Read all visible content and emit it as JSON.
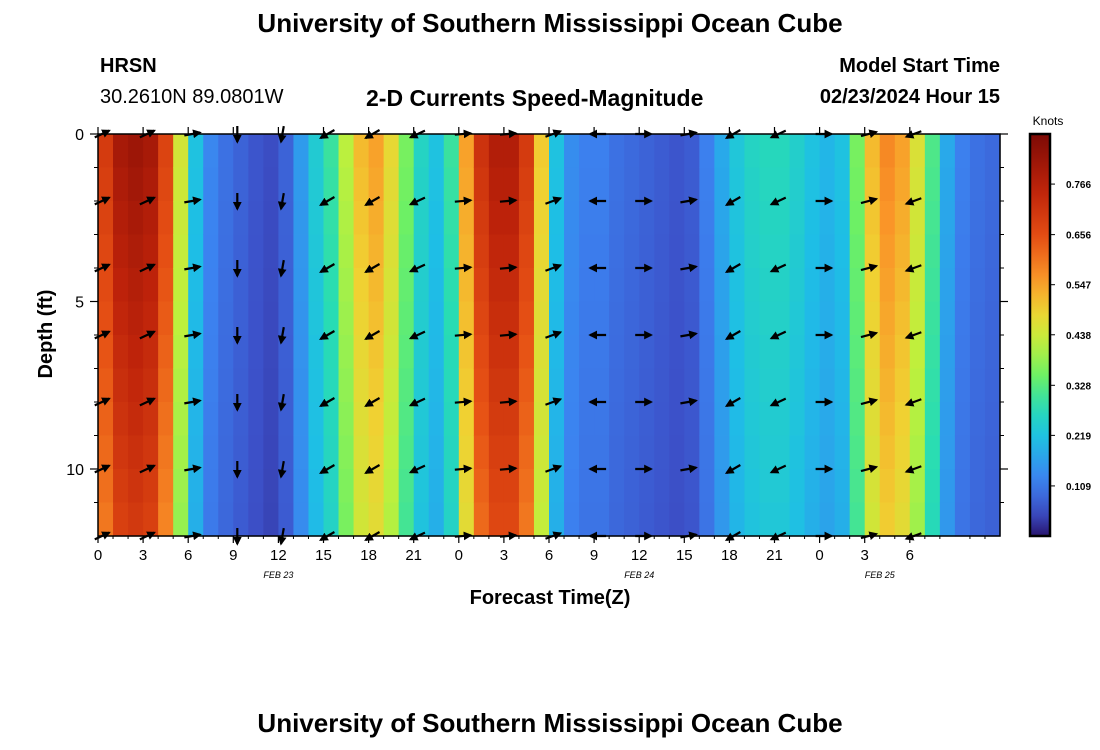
{
  "title": "University of Southern Mississippi Ocean Cube",
  "footer_title": "University of Southern Mississippi Ocean Cube",
  "station": {
    "name": "HRSN",
    "coordinates": "30.2610N  89.0801W"
  },
  "subtitle": "2-D Currents Speed-Magnitude",
  "model_start": {
    "label": "Model Start Time",
    "value": "02/23/2024 Hour 15"
  },
  "chart_data": {
    "type": "heatmap",
    "title": "2-D Currents Speed-Magnitude",
    "xlabel": "Forecast Time(Z)",
    "ylabel": "Depth (ft)",
    "x_hours": [
      0,
      60
    ],
    "ylim": [
      0,
      12
    ],
    "y_reversed": true,
    "x_tick_labels": [
      "0",
      "3",
      "6",
      "9",
      "12",
      "15",
      "18",
      "21",
      "0",
      "3",
      "6",
      "9",
      "12",
      "15",
      "18",
      "21",
      "0",
      "3",
      "6"
    ],
    "y_tick_values": [
      0,
      5,
      10
    ],
    "y_tick_labels": [
      "0",
      "5",
      "10"
    ],
    "date_labels": [
      {
        "text": "FEB 23",
        "hour": 12
      },
      {
        "text": "FEB 24",
        "hour": 36
      },
      {
        "text": "FEB 25",
        "hour": 52
      }
    ],
    "colorbar": {
      "label": "Knots",
      "range": [
        0,
        0.875
      ],
      "ticks": [
        0.109,
        0.219,
        0.328,
        0.438,
        0.547,
        0.656,
        0.766
      ],
      "tick_labels": [
        "0.109",
        "0.219",
        "0.328",
        "0.438",
        "0.547",
        "0.656",
        "0.766"
      ]
    },
    "speed_profile_knots": [
      {
        "hour": 0,
        "speed": 0.7
      },
      {
        "hour": 1,
        "speed": 0.8
      },
      {
        "hour": 2,
        "speed": 0.82
      },
      {
        "hour": 3,
        "speed": 0.8
      },
      {
        "hour": 4,
        "speed": 0.68
      },
      {
        "hour": 5,
        "speed": 0.45
      },
      {
        "hour": 6,
        "speed": 0.22
      },
      {
        "hour": 7,
        "speed": 0.13
      },
      {
        "hour": 8,
        "speed": 0.1
      },
      {
        "hour": 9,
        "speed": 0.08
      },
      {
        "hour": 10,
        "speed": 0.06
      },
      {
        "hour": 11,
        "speed": 0.05
      },
      {
        "hour": 12,
        "speed": 0.08
      },
      {
        "hour": 13,
        "speed": 0.16
      },
      {
        "hour": 14,
        "speed": 0.24
      },
      {
        "hour": 15,
        "speed": 0.3
      },
      {
        "hour": 16,
        "speed": 0.42
      },
      {
        "hour": 17,
        "speed": 0.52
      },
      {
        "hour": 18,
        "speed": 0.55
      },
      {
        "hour": 19,
        "speed": 0.48
      },
      {
        "hour": 20,
        "speed": 0.36
      },
      {
        "hour": 21,
        "speed": 0.26
      },
      {
        "hour": 22,
        "speed": 0.22
      },
      {
        "hour": 23,
        "speed": 0.3
      },
      {
        "hour": 24,
        "speed": 0.55
      },
      {
        "hour": 25,
        "speed": 0.72
      },
      {
        "hour": 26,
        "speed": 0.78
      },
      {
        "hour": 27,
        "speed": 0.78
      },
      {
        "hour": 28,
        "speed": 0.7
      },
      {
        "hour": 29,
        "speed": 0.5
      },
      {
        "hour": 30,
        "speed": 0.22
      },
      {
        "hour": 31,
        "speed": 0.14
      },
      {
        "hour": 32,
        "speed": 0.12
      },
      {
        "hour": 33,
        "speed": 0.12
      },
      {
        "hour": 34,
        "speed": 0.1
      },
      {
        "hour": 35,
        "speed": 0.09
      },
      {
        "hour": 36,
        "speed": 0.08
      },
      {
        "hour": 37,
        "speed": 0.07
      },
      {
        "hour": 38,
        "speed": 0.06
      },
      {
        "hour": 39,
        "speed": 0.07
      },
      {
        "hour": 40,
        "speed": 0.12
      },
      {
        "hour": 41,
        "speed": 0.18
      },
      {
        "hour": 42,
        "speed": 0.23
      },
      {
        "hour": 43,
        "speed": 0.26
      },
      {
        "hour": 44,
        "speed": 0.27
      },
      {
        "hour": 45,
        "speed": 0.27
      },
      {
        "hour": 46,
        "speed": 0.25
      },
      {
        "hour": 47,
        "speed": 0.22
      },
      {
        "hour": 48,
        "speed": 0.2
      },
      {
        "hour": 49,
        "speed": 0.22
      },
      {
        "hour": 50,
        "speed": 0.36
      },
      {
        "hour": 51,
        "speed": 0.52
      },
      {
        "hour": 52,
        "speed": 0.58
      },
      {
        "hour": 53,
        "speed": 0.55
      },
      {
        "hour": 54,
        "speed": 0.46
      },
      {
        "hour": 55,
        "speed": 0.32
      },
      {
        "hour": 56,
        "speed": 0.18
      },
      {
        "hour": 57,
        "speed": 0.12
      },
      {
        "hour": 58,
        "speed": 0.1
      },
      {
        "hour": 59,
        "speed": 0.09
      },
      {
        "hour": 60,
        "speed": 0.08
      }
    ],
    "vector_depths_ft": [
      0,
      2,
      4,
      6,
      8,
      10,
      12
    ],
    "vector_directions_deg": [
      {
        "hour": 0,
        "deg": 25
      },
      {
        "hour": 3,
        "deg": 25
      },
      {
        "hour": 6,
        "deg": 10
      },
      {
        "hour": 9,
        "deg": 270
      },
      {
        "hour": 12,
        "deg": 260
      },
      {
        "hour": 15,
        "deg": 210
      },
      {
        "hour": 18,
        "deg": 210
      },
      {
        "hour": 21,
        "deg": 205
      },
      {
        "hour": 24,
        "deg": 5
      },
      {
        "hour": 27,
        "deg": 5
      },
      {
        "hour": 30,
        "deg": 20
      },
      {
        "hour": 33,
        "deg": 180
      },
      {
        "hour": 36,
        "deg": 0
      },
      {
        "hour": 39,
        "deg": 10
      },
      {
        "hour": 42,
        "deg": 210
      },
      {
        "hour": 45,
        "deg": 205
      },
      {
        "hour": 48,
        "deg": 0
      },
      {
        "hour": 51,
        "deg": 15
      },
      {
        "hour": 54,
        "deg": 200
      }
    ]
  }
}
